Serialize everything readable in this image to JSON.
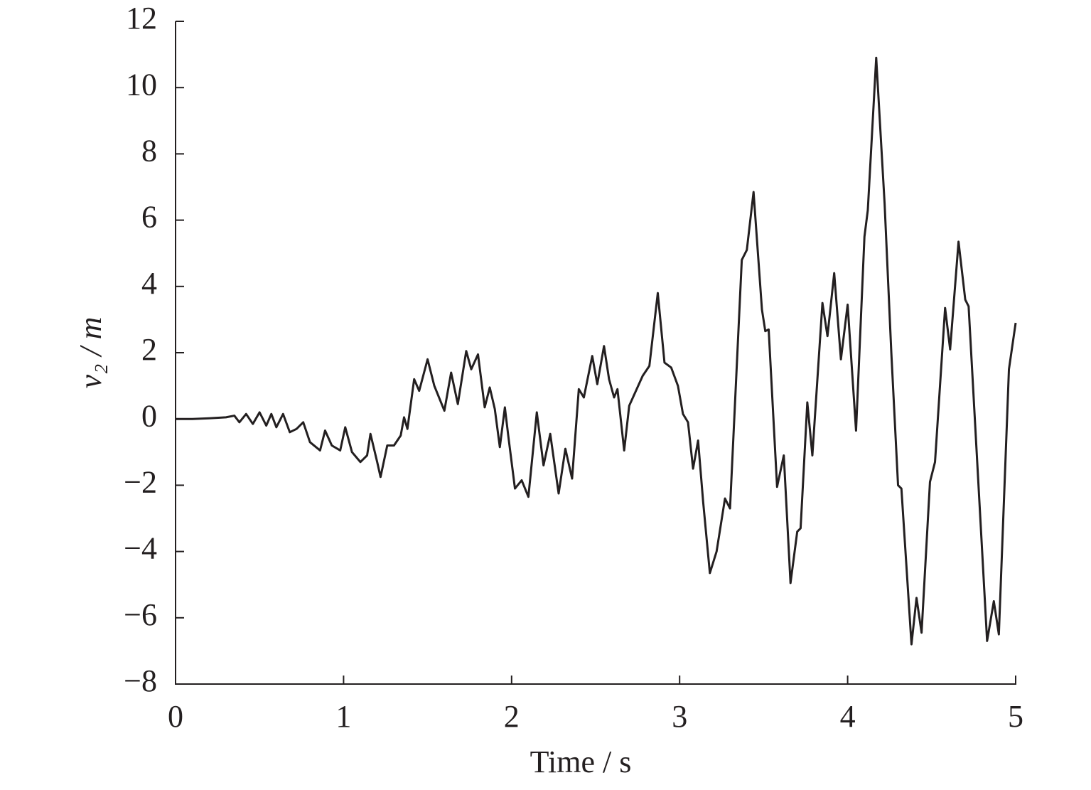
{
  "chart_data": {
    "type": "line",
    "xlabel": "Time / s",
    "ylabel": "v₂ / m",
    "x": [
      0,
      0.1,
      0.2,
      0.3,
      0.35,
      0.38,
      0.42,
      0.46,
      0.5,
      0.54,
      0.57,
      0.6,
      0.64,
      0.68,
      0.72,
      0.76,
      0.8,
      0.86,
      0.89,
      0.93,
      0.98,
      1.01,
      1.05,
      1.1,
      1.14,
      1.16,
      1.2,
      1.22,
      1.26,
      1.3,
      1.34,
      1.36,
      1.38,
      1.42,
      1.45,
      1.5,
      1.54,
      1.58,
      1.6,
      1.64,
      1.68,
      1.73,
      1.76,
      1.8,
      1.84,
      1.87,
      1.9,
      1.93,
      1.96,
      1.98,
      2.02,
      2.06,
      2.1,
      2.15,
      2.19,
      2.23,
      2.28,
      2.32,
      2.36,
      2.4,
      2.43,
      2.48,
      2.51,
      2.55,
      2.58,
      2.61,
      2.63,
      2.67,
      2.7,
      2.74,
      2.78,
      2.82,
      2.87,
      2.91,
      2.95,
      2.99,
      3.02,
      3.05,
      3.08,
      3.11,
      3.14,
      3.18,
      3.22,
      3.27,
      3.3,
      3.37,
      3.4,
      3.44,
      3.49,
      3.51,
      3.53,
      3.58,
      3.62,
      3.66,
      3.7,
      3.72,
      3.76,
      3.79,
      3.85,
      3.88,
      3.92,
      3.96,
      4.0,
      4.05,
      4.1,
      4.12,
      4.17,
      4.22,
      4.26,
      4.3,
      4.32,
      4.38,
      4.41,
      4.44,
      4.49,
      4.52,
      4.58,
      4.61,
      4.66,
      4.7,
      4.72,
      4.83,
      4.87,
      4.9,
      4.96,
      5.0
    ],
    "series": [
      {
        "color": "#231f20",
        "values": [
          0,
          0,
          0.02,
          0.05,
          0.1,
          -0.1,
          0.15,
          -0.15,
          0.2,
          -0.2,
          0.15,
          -0.25,
          0.15,
          -0.4,
          -0.3,
          -0.1,
          -0.7,
          -0.95,
          -0.35,
          -0.8,
          -0.95,
          -0.25,
          -1.0,
          -1.3,
          -1.1,
          -0.45,
          -1.3,
          -1.75,
          -0.8,
          -0.8,
          -0.5,
          0.05,
          -0.3,
          1.2,
          0.85,
          1.8,
          1.0,
          0.5,
          0.25,
          1.4,
          0.45,
          2.05,
          1.5,
          1.95,
          0.35,
          0.95,
          0.3,
          -0.85,
          0.35,
          -0.5,
          -2.1,
          -1.85,
          -2.35,
          0.2,
          -1.4,
          -0.45,
          -2.25,
          -0.9,
          -1.8,
          0.9,
          0.65,
          1.9,
          1.05,
          2.2,
          1.2,
          0.65,
          0.9,
          -0.95,
          0.4,
          0.85,
          1.3,
          1.6,
          3.8,
          1.7,
          1.55,
          1.0,
          0.15,
          -0.1,
          -1.5,
          -0.65,
          -2.5,
          -4.65,
          -4.0,
          -2.4,
          -2.7,
          4.8,
          5.1,
          6.85,
          3.3,
          2.65,
          2.7,
          -2.05,
          -1.1,
          -4.95,
          -3.4,
          -3.3,
          0.5,
          -1.1,
          3.5,
          2.5,
          4.4,
          1.8,
          3.45,
          -0.35,
          5.5,
          6.3,
          10.9,
          6.5,
          2.0,
          -2.0,
          -2.1,
          -6.8,
          -5.4,
          -6.45,
          -1.9,
          -1.3,
          3.35,
          2.1,
          5.35,
          3.6,
          3.4,
          -6.7,
          -5.5,
          -6.5,
          1.5,
          2.9
        ]
      }
    ],
    "xlim": [
      0,
      5
    ],
    "xticks": [
      0,
      1,
      2,
      3,
      4,
      5
    ],
    "ylim": [
      -8,
      12
    ],
    "yticks": [
      {
        "value": -8,
        "label": "−8"
      },
      {
        "value": -6,
        "label": "−6"
      },
      {
        "value": -4,
        "label": "−4"
      },
      {
        "value": -2,
        "label": "−2"
      },
      0,
      2,
      4,
      6,
      8,
      10,
      12
    ],
    "grid": false
  }
}
